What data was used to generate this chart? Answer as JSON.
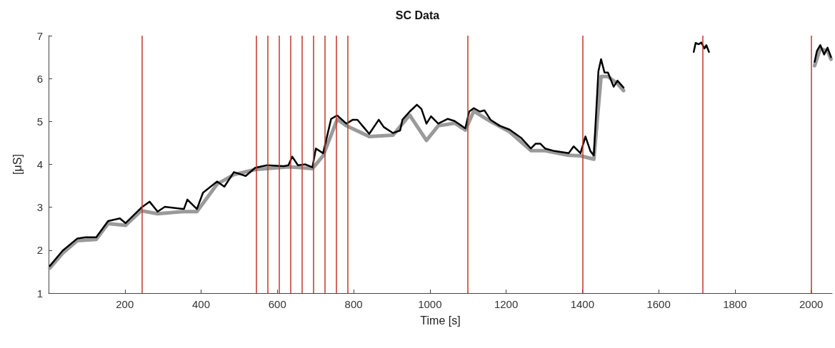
{
  "chart_data": {
    "type": "line",
    "title": "SC Data",
    "xlabel": "Time [s]",
    "ylabel": "[μS]",
    "xlim": [
      0,
      2055
    ],
    "ylim": [
      1,
      7
    ],
    "xticks": [
      200,
      400,
      600,
      800,
      1000,
      1200,
      1400,
      1600,
      1800,
      2000
    ],
    "yticks": [
      1,
      2,
      3,
      4,
      5,
      6,
      7
    ],
    "grid": false,
    "marker": "none",
    "line_style": "solid",
    "series": [
      {
        "color": "#9a9a9a",
        "x": [
          3,
          37,
          75,
          125,
          156,
          202,
          243,
          286,
          355,
          389,
          442,
          486,
          542,
          629,
          654,
          692,
          720,
          757,
          781,
          841,
          903,
          947,
          991,
          1022,
          1065,
          1093,
          1115,
          1159,
          1209,
          1265,
          1302,
          1364,
          1395,
          1430,
          1449,
          1467,
          1492,
          1508,
          1520,
          2009,
          2024,
          2043,
          2052
        ],
        "values": [
          1.58,
          1.93,
          2.22,
          2.25,
          2.62,
          2.58,
          2.92,
          2.85,
          2.9,
          2.9,
          3.54,
          3.76,
          3.88,
          3.94,
          3.93,
          3.9,
          4.2,
          5.05,
          4.9,
          4.65,
          4.68,
          5.15,
          4.56,
          4.9,
          4.96,
          4.8,
          5.24,
          5.0,
          4.76,
          4.32,
          4.32,
          4.21,
          4.2,
          4.12,
          6.05,
          6.05,
          5.88,
          5.72,
          null,
          6.3,
          6.7,
          6.64,
          6.45
        ]
      },
      {
        "color": "#000000",
        "x": [
          3,
          37,
          75,
          97,
          125,
          156,
          187,
          202,
          243,
          265,
          286,
          305,
          355,
          364,
          389,
          405,
          442,
          461,
          486,
          517,
          542,
          573,
          617,
          629,
          639,
          654,
          673,
          692,
          701,
          720,
          741,
          757,
          781,
          798,
          810,
          841,
          866,
          879,
          903,
          922,
          928,
          947,
          966,
          978,
          991,
          1003,
          1022,
          1047,
          1065,
          1093,
          1103,
          1115,
          1131,
          1143,
          1159,
          1183,
          1209,
          1239,
          1265,
          1277,
          1290,
          1302,
          1327,
          1364,
          1377,
          1395,
          1408,
          1421,
          1430,
          1442,
          1449,
          1458,
          1467,
          1482,
          1492,
          1508,
          1515,
          1692,
          1697,
          1705,
          1712,
          1720,
          1725,
          1732,
          1740,
          2009,
          2015,
          2024,
          2034,
          2043,
          2052
        ],
        "values": [
          1.63,
          1.99,
          2.27,
          2.3,
          2.3,
          2.68,
          2.74,
          2.63,
          2.99,
          3.13,
          2.9,
          3.01,
          2.96,
          3.18,
          2.96,
          3.34,
          3.6,
          3.48,
          3.82,
          3.73,
          3.92,
          3.98,
          3.96,
          3.98,
          4.18,
          3.98,
          4.0,
          3.93,
          4.37,
          4.26,
          5.06,
          5.14,
          4.95,
          5.04,
          5.04,
          4.71,
          5.04,
          4.87,
          4.73,
          4.79,
          5.04,
          5.23,
          5.39,
          5.29,
          4.95,
          5.12,
          4.95,
          5.06,
          5.01,
          4.84,
          5.23,
          5.31,
          5.23,
          5.26,
          5.04,
          4.9,
          4.81,
          4.62,
          4.37,
          4.48,
          4.48,
          4.37,
          4.31,
          4.26,
          4.42,
          4.26,
          4.65,
          4.31,
          4.21,
          6.17,
          6.45,
          6.14,
          6.14,
          5.81,
          5.95,
          5.79,
          null,
          6.62,
          6.83,
          6.8,
          6.84,
          6.7,
          6.78,
          6.62,
          null,
          6.39,
          6.64,
          6.78,
          6.56,
          6.72,
          6.5
        ]
      }
    ],
    "ref_lines": [
      {
        "axis": "x",
        "value": 245,
        "color": "#c0392b"
      },
      {
        "axis": "x",
        "value": 545,
        "color": "#c0392b"
      },
      {
        "axis": "x",
        "value": 575,
        "color": "#c0392b"
      },
      {
        "axis": "x",
        "value": 605,
        "color": "#c0392b"
      },
      {
        "axis": "x",
        "value": 635,
        "color": "#c0392b"
      },
      {
        "axis": "x",
        "value": 665,
        "color": "#c0392b"
      },
      {
        "axis": "x",
        "value": 695,
        "color": "#c0392b"
      },
      {
        "axis": "x",
        "value": 725,
        "color": "#c0392b"
      },
      {
        "axis": "x",
        "value": 755,
        "color": "#c0392b"
      },
      {
        "axis": "x",
        "value": 785,
        "color": "#c0392b"
      },
      {
        "axis": "x",
        "value": 1100,
        "color": "#c0392b"
      },
      {
        "axis": "x",
        "value": 1400,
        "color": "#c0392b"
      },
      {
        "axis": "x",
        "value": 1715,
        "color": "#c0392b"
      },
      {
        "axis": "x",
        "value": 2000,
        "color": "#c0392b"
      }
    ]
  }
}
